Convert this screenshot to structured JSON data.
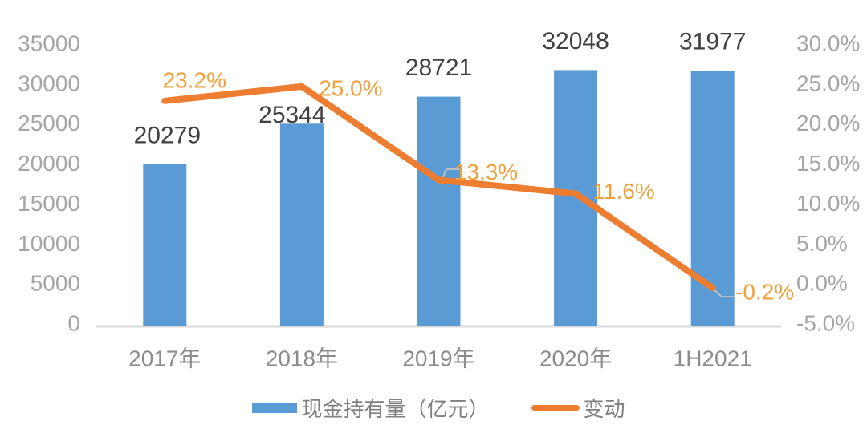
{
  "colors": {
    "bar": "#5B9BD5",
    "line": "#ED7D31",
    "line_label": "#F0A13C",
    "bar_label": "#404040",
    "axis_tick": "#A6A6A6",
    "x_label": "#8C8C8C",
    "legend_text": "#808080",
    "axis_line": "#D9D9D9",
    "leader": "#BFBFBF",
    "background": "#FFFFFF"
  },
  "chart_data": {
    "type": "bar+line",
    "title": "",
    "categories": [
      "2017年",
      "2018年",
      "2019年",
      "2020年",
      "1H2021"
    ],
    "series": [
      {
        "name": "现金持有量（亿元）",
        "type": "bar",
        "axis": "left",
        "color": "#5B9BD5",
        "values": [
          20279,
          25344,
          28721,
          32048,
          31977
        ],
        "data_labels": [
          "20279",
          "25344",
          "28721",
          "32048",
          "31977"
        ]
      },
      {
        "name": "变动",
        "type": "line",
        "axis": "right",
        "color": "#ED7D31",
        "label_color": "#F0A13C",
        "values": [
          23.2,
          25.0,
          13.3,
          11.6,
          -0.2
        ],
        "data_labels": [
          "23.2%",
          "25.0%",
          "13.3%",
          "11.6%",
          "-0.2%"
        ]
      }
    ],
    "left_axis": {
      "min": 0,
      "max": 35000,
      "step": 5000,
      "ticks": [
        "35000",
        "30000",
        "25000",
        "20000",
        "15000",
        "10000",
        "5000",
        "0"
      ]
    },
    "right_axis": {
      "min": -5,
      "max": 30,
      "step": 5,
      "ticks": [
        "30.0%",
        "25.0%",
        "20.0%",
        "15.0%",
        "10.0%",
        "5.0%",
        "0.0%",
        "-5.0%"
      ]
    },
    "legend": [
      {
        "label": "现金持有量（亿元）",
        "swatch": "bar"
      },
      {
        "label": "变动",
        "swatch": "line"
      }
    ],
    "grid": "off",
    "legend_position": "bottom-center"
  }
}
